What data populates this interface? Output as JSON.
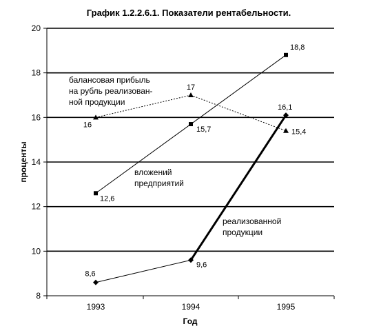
{
  "chart_data": {
    "type": "line",
    "title": "График 1.2.2.6.1.  Показатели рентабельности.",
    "xlabel": "Год",
    "ylabel": "проценты",
    "categories": [
      "1993",
      "1994",
      "1995"
    ],
    "ylim": [
      8,
      20
    ],
    "yticks": [
      "8",
      "10",
      "12",
      "14",
      "16",
      "18",
      "20"
    ],
    "grid": "horizontal",
    "series": [
      {
        "values": [
          16,
          17,
          15.4
        ],
        "labels": [
          "16",
          "17",
          "15,4"
        ],
        "marker": "triangle",
        "line_style": "dotted"
      },
      {
        "values": [
          12.6,
          15.7,
          18.8
        ],
        "labels": [
          "12,6",
          "15,7",
          "18,8"
        ],
        "marker": "square",
        "line_style": "solid"
      },
      {
        "values": [
          8.6,
          9.6,
          16.1
        ],
        "labels": [
          "8,6",
          "9,6",
          "16,1"
        ],
        "marker": "diamond",
        "line_style": "solid-thick-last"
      }
    ],
    "annotations": [
      [
        "балансовая прибыль",
        "на рубль реализован-",
        "ной продукции"
      ],
      [
        "вложений",
        "предприятий"
      ],
      [
        "реализованной",
        "продукции"
      ]
    ]
  }
}
